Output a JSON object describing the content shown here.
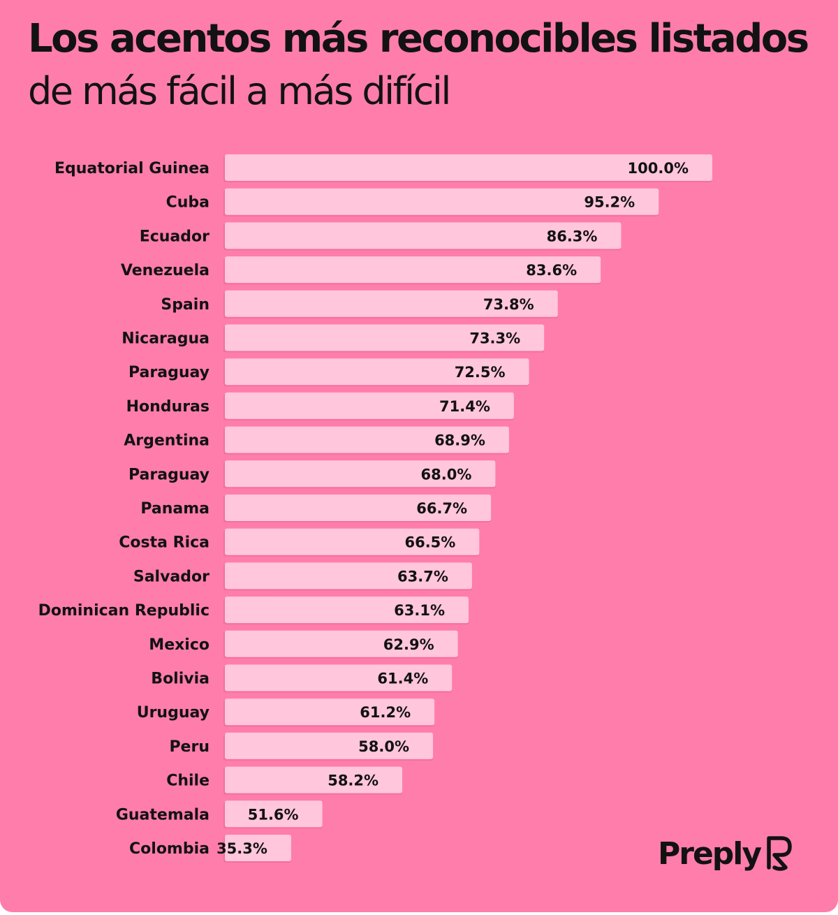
{
  "title": "Los acentos más reconocibles listados",
  "subtitle": "de más fácil a más difícil",
  "brand": {
    "name": "Preply",
    "icon": "preply-logo-icon"
  },
  "colors": {
    "background": "#ff7dab",
    "bar": "#ffc6dc",
    "text": "#121212"
  },
  "chart_data": {
    "type": "bar",
    "orientation": "horizontal",
    "title": "Los acentos más reconocibles listados",
    "subtitle": "de más fácil a más difícil",
    "categories": [
      "Equatorial Guinea",
      "Cuba",
      "Ecuador",
      "Venezuela",
      "Spain",
      "Nicaragua",
      "Paraguay",
      "Honduras",
      "Argentina",
      "Paraguay",
      "Panama",
      "Costa Rica",
      "Salvador",
      "Dominican Republic",
      "Mexico",
      "Bolivia",
      "Uruguay",
      "Peru",
      "Chile",
      "Guatemala",
      "Colombia"
    ],
    "values": [
      100.0,
      95.2,
      86.3,
      83.6,
      73.8,
      73.3,
      72.5,
      71.4,
      68.9,
      68.0,
      66.7,
      66.5,
      63.7,
      63.1,
      62.9,
      61.4,
      61.2,
      58.0,
      58.2,
      51.6,
      35.3
    ],
    "value_labels": [
      "100.0%",
      "95.2%",
      "86.3%",
      "83.6%",
      "73.8%",
      "73.3%",
      "72.5%",
      "71.4%",
      "68.9%",
      "68.0%",
      "66.7%",
      "66.5%",
      "63.7%",
      "63.1%",
      "62.9%",
      "61.4%",
      "61.2%",
      "58.0%",
      "58.2%",
      "51.6%",
      "35.3%"
    ],
    "bar_extent_percent": [
      100.0,
      89.0,
      81.3,
      77.1,
      68.3,
      65.5,
      62.4,
      59.3,
      58.3,
      55.5,
      54.6,
      52.2,
      50.7,
      50.0,
      47.8,
      46.6,
      43.0,
      42.7,
      36.4,
      20.0,
      13.6
    ],
    "xlim": [
      0,
      100
    ],
    "grid": false,
    "legend": "none"
  }
}
